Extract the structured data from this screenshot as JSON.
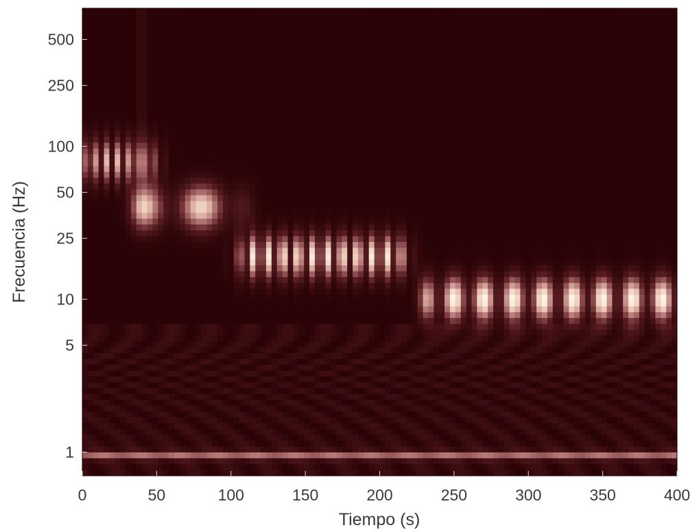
{
  "chart_data": {
    "type": "heatmap",
    "title": "",
    "xlabel": "Tiempo (s)",
    "ylabel": "Frecuencia (Hz)",
    "xlim": [
      0,
      400
    ],
    "ylim": [
      0.7,
      800
    ],
    "y_scale": "log",
    "x_ticks": [
      0,
      50,
      100,
      150,
      200,
      250,
      300,
      350,
      400
    ],
    "x_tick_labels": [
      "0",
      "50",
      "100",
      "150",
      "200",
      "250",
      "300",
      "350",
      "400"
    ],
    "y_ticks": [
      1,
      5,
      10,
      25,
      50,
      100,
      250,
      500
    ],
    "y_tick_labels": [
      "1",
      "5",
      "10",
      "25",
      "50",
      "100",
      "250",
      "500"
    ],
    "colormap": [
      "#2a0306",
      "#5a1e22",
      "#a8696a",
      "#e7c0b0",
      "#fff8e8"
    ],
    "grid": false,
    "components": [
      {
        "t_start": 0,
        "t_end": 42,
        "freq": 80,
        "period": 2.5,
        "peak": 0.75
      },
      {
        "t_start": 42,
        "t_end": 100,
        "freq": 40,
        "period": 4,
        "peak": 0.85
      },
      {
        "t_start": 113,
        "t_end": 210,
        "freq": 19,
        "period": 10,
        "peak": 0.95
      },
      {
        "t_start": 237,
        "t_end": 400,
        "freq": 10,
        "period": 20,
        "peak": 1.0
      }
    ],
    "baseline_band": {
      "freq": 0.95,
      "peak": 0.45
    },
    "transient": {
      "t": 40,
      "f_min": 60,
      "f_max": 800
    }
  }
}
